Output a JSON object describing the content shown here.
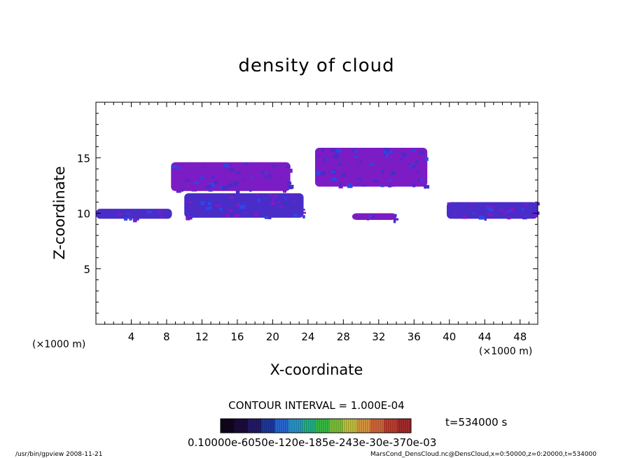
{
  "chart_data": {
    "type": "heatmap",
    "title": "density of cloud",
    "xlabel": "X-coordinate",
    "ylabel": "Z-coordinate",
    "x_unit": "(×1000 m)",
    "y_unit": "(×1000 m)",
    "xlim": [
      0,
      50
    ],
    "ylim": [
      0,
      20
    ],
    "x_ticks": [
      4,
      8,
      12,
      16,
      20,
      24,
      28,
      32,
      36,
      40,
      44,
      48
    ],
    "y_ticks": [
      5,
      10,
      15
    ],
    "contour_interval": "CONTOUR INTERVAL = 1.000E-04",
    "time_label": "t=534000 s",
    "colorbar_label": "0.10000e-6050e-120e-185e-243e-30e-370e-03",
    "colorbar_colors": [
      "#12061e",
      "#1c0c3c",
      "#241a6e",
      "#1e3aa6",
      "#2a6ad6",
      "#2a9ad2",
      "#22b88a",
      "#3cc048",
      "#80c83a",
      "#c8c840",
      "#dc9c44",
      "#d86a3a",
      "#c8402e",
      "#a82e2e"
    ],
    "cloud_colors": {
      "outer": "#7c1cc4",
      "inner": "#4a2cc8",
      "core": "#2a48e8"
    },
    "regions": [
      {
        "x": [
          0,
          8.6
        ],
        "z": [
          9.5,
          10.4
        ],
        "level": "inner"
      },
      {
        "x": [
          8.5,
          22
        ],
        "z": [
          12.0,
          14.6
        ],
        "level": "outer"
      },
      {
        "x": [
          10,
          23.5
        ],
        "z": [
          9.6,
          11.8
        ],
        "level": "inner"
      },
      {
        "x": [
          24.8,
          37.5
        ],
        "z": [
          12.4,
          15.9
        ],
        "level": "outer"
      },
      {
        "x": [
          29,
          34
        ],
        "z": [
          9.4,
          10.0
        ],
        "level": "outer"
      },
      {
        "x": [
          39.7,
          50
        ],
        "z": [
          9.5,
          11.0
        ],
        "level": "inner"
      }
    ],
    "footer_left": "/usr/bin/gpview  2008-11-21",
    "footer_right": "MarsCond_DensCloud.nc@DensCloud,x=0:50000,z=0:20000,t=534000"
  }
}
